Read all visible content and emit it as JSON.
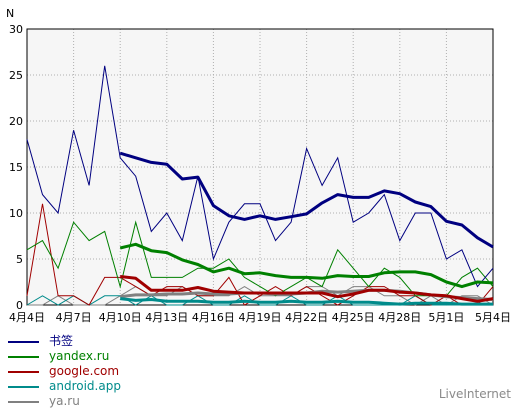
{
  "chart_data": {
    "type": "line",
    "ylabel": "N",
    "ylim": [
      0,
      30
    ],
    "yticks": [
      0,
      5,
      10,
      15,
      20,
      25,
      30
    ],
    "grid": true,
    "legend_position": "bottom-left",
    "categories": [
      "4月4日",
      "4月5日",
      "4月6日",
      "4月7日",
      "4月8日",
      "4月9日",
      "4月10日",
      "4月11日",
      "4月12日",
      "4月13日",
      "4月14日",
      "4月15日",
      "4月16日",
      "4月17日",
      "4月18日",
      "4月19日",
      "4月20日",
      "4月21日",
      "4月22日",
      "4月23日",
      "4月24日",
      "4月25日",
      "4月26日",
      "4月27日",
      "4月28日",
      "4月29日",
      "4月30日",
      "5月1日",
      "5月2日",
      "5月3日",
      "5月4日"
    ],
    "xtick_labels": [
      "4月4日",
      "4月7日",
      "4月10日",
      "4月13日",
      "4月16日",
      "4月19日",
      "4月22日",
      "4月25日",
      "4月28日",
      "5月1日",
      "5月4日"
    ],
    "series": [
      {
        "name": "书签",
        "color": "#000080",
        "values": [
          18,
          12,
          10,
          19,
          13,
          26,
          16,
          14,
          8,
          10,
          7,
          14,
          5,
          9,
          11,
          11,
          7,
          9,
          17,
          13,
          16,
          9,
          10,
          12,
          7,
          10,
          10,
          5,
          6,
          2,
          4
        ],
        "avg": [
          null,
          null,
          null,
          null,
          null,
          null,
          16.5,
          16,
          15.5,
          15.3,
          13.7,
          13.9,
          10.8,
          9.7,
          9.3,
          9.7,
          9.3,
          9.6,
          9.9,
          11.1,
          12.0,
          11.7,
          11.7,
          12.4,
          12.1,
          11.2,
          10.7,
          9.1,
          8.7,
          7.3,
          6.3
        ]
      },
      {
        "name": "yandex.ru",
        "color": "#008000",
        "values": [
          6,
          7,
          4,
          9,
          7,
          8,
          2,
          9,
          3,
          3,
          3,
          4,
          4,
          5,
          3,
          2,
          1,
          2,
          3,
          2,
          6,
          4,
          2,
          4,
          3,
          1,
          1,
          1,
          3,
          4,
          2
        ],
        "avg": [
          null,
          null,
          null,
          null,
          null,
          null,
          6.2,
          6.6,
          5.9,
          5.7,
          4.9,
          4.4,
          3.6,
          4.0,
          3.4,
          3.5,
          3.2,
          3.0,
          3.0,
          2.9,
          3.2,
          3.1,
          3.1,
          3.5,
          3.6,
          3.6,
          3.3,
          2.5,
          2.0,
          2.5,
          2.4
        ]
      },
      {
        "name": "google.com",
        "color": "#a00000",
        "values": [
          1,
          11,
          1,
          1,
          0,
          3,
          3,
          2,
          1,
          2,
          2,
          1,
          1,
          3,
          0,
          1,
          2,
          1,
          2,
          1,
          0,
          1,
          2,
          2,
          1,
          1,
          0,
          1,
          0,
          0,
          2
        ],
        "avg": [
          null,
          null,
          null,
          null,
          null,
          null,
          3.1,
          2.9,
          1.6,
          1.6,
          1.6,
          1.9,
          1.5,
          1.4,
          1.3,
          1.3,
          1.3,
          1.3,
          1.3,
          1.3,
          0.9,
          1.2,
          1.6,
          1.6,
          1.4,
          1.3,
          1.1,
          1.0,
          0.7,
          0.4,
          0.7
        ]
      },
      {
        "name": "android.app",
        "color": "#008b8b",
        "values": [
          0,
          1,
          0,
          1,
          0,
          1,
          1,
          0,
          1,
          0,
          0,
          1,
          0,
          0,
          1,
          0,
          0,
          1,
          0,
          0,
          1,
          0,
          0,
          0,
          0,
          1,
          0,
          0,
          0,
          0,
          0
        ],
        "avg": [
          null,
          null,
          null,
          null,
          null,
          null,
          0.7,
          0.5,
          0.6,
          0.4,
          0.4,
          0.4,
          0.3,
          0.3,
          0.4,
          0.3,
          0.3,
          0.4,
          0.3,
          0.3,
          0.4,
          0.3,
          0.3,
          0.2,
          0.1,
          0.2,
          0.2,
          0.2,
          0.1,
          0.1,
          0.1
        ]
      },
      {
        "name": "ya.ru",
        "color": "#808080",
        "values": [
          0,
          0,
          1,
          0,
          0,
          0,
          1,
          2,
          1,
          1,
          2,
          1,
          1,
          1,
          2,
          1,
          1,
          1,
          2,
          2,
          1,
          2,
          2,
          1,
          1,
          0,
          1,
          0,
          1,
          1,
          0
        ],
        "avg": [
          null,
          null,
          null,
          null,
          null,
          null,
          0.9,
          1.1,
          1.1,
          1.2,
          1.2,
          1.3,
          1.2,
          1.2,
          1.3,
          1.3,
          1.2,
          1.2,
          1.3,
          1.5,
          1.4,
          1.5,
          1.6,
          1.6,
          1.5,
          1.3,
          1.1,
          0.9,
          0.8,
          0.7,
          0.6
        ]
      }
    ]
  },
  "credit": "LiveInternet"
}
